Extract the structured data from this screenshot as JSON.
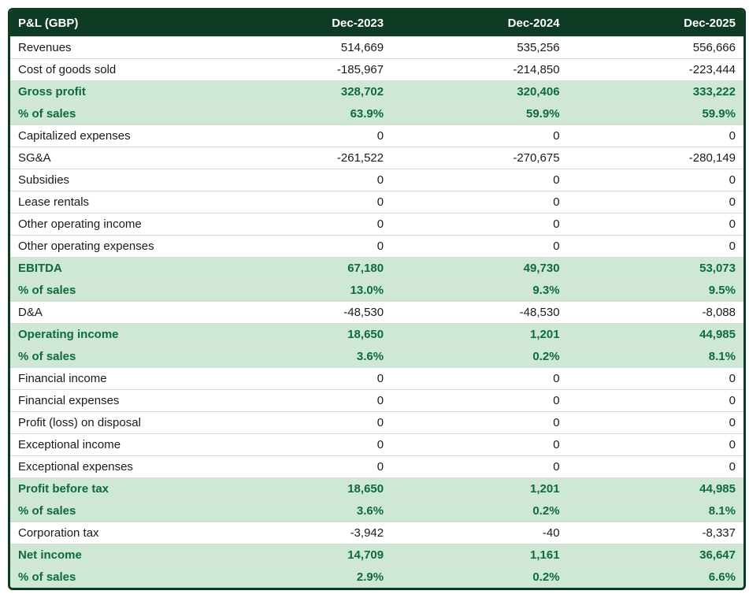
{
  "colors": {
    "header_bg": "#0d3b24",
    "header_text": "#ffffff",
    "row_border": "#d9d9d9",
    "highlight_bg": "#cfe8d6",
    "highlight_text": "#0d6b3d",
    "body_text": "#1a1a1a",
    "background": "#ffffff"
  },
  "fonts": {
    "family": "Arial, Helvetica, sans-serif",
    "header_size_pt": 11,
    "body_size_pt": 11
  },
  "table": {
    "columns": [
      "P&L (GBP)",
      "Dec-2023",
      "Dec-2024",
      "Dec-2025"
    ],
    "col_widths_pct": [
      28,
      24,
      24,
      24
    ],
    "rows": [
      {
        "label": "Revenues",
        "vals": [
          "514,669",
          "535,256",
          "556,666"
        ],
        "highlight": false
      },
      {
        "label": "Cost of goods sold",
        "vals": [
          "-185,967",
          "-214,850",
          "-223,444"
        ],
        "highlight": false
      },
      {
        "label": "Gross profit",
        "vals": [
          "328,702",
          "320,406",
          "333,222"
        ],
        "highlight": true
      },
      {
        "label": "% of sales",
        "vals": [
          "63.9%",
          "59.9%",
          "59.9%"
        ],
        "highlight": true
      },
      {
        "label": "Capitalized expenses",
        "vals": [
          "0",
          "0",
          "0"
        ],
        "highlight": false
      },
      {
        "label": "SG&A",
        "vals": [
          "-261,522",
          "-270,675",
          "-280,149"
        ],
        "highlight": false
      },
      {
        "label": "Subsidies",
        "vals": [
          "0",
          "0",
          "0"
        ],
        "highlight": false
      },
      {
        "label": "Lease rentals",
        "vals": [
          "0",
          "0",
          "0"
        ],
        "highlight": false
      },
      {
        "label": "Other operating income",
        "vals": [
          "0",
          "0",
          "0"
        ],
        "highlight": false
      },
      {
        "label": "Other operating expenses",
        "vals": [
          "0",
          "0",
          "0"
        ],
        "highlight": false
      },
      {
        "label": "EBITDA",
        "vals": [
          "67,180",
          "49,730",
          "53,073"
        ],
        "highlight": true
      },
      {
        "label": "% of sales",
        "vals": [
          "13.0%",
          "9.3%",
          "9.5%"
        ],
        "highlight": true
      },
      {
        "label": "D&A",
        "vals": [
          "-48,530",
          "-48,530",
          "-8,088"
        ],
        "highlight": false
      },
      {
        "label": "Operating income",
        "vals": [
          "18,650",
          "1,201",
          "44,985"
        ],
        "highlight": true
      },
      {
        "label": "% of sales",
        "vals": [
          "3.6%",
          "0.2%",
          "8.1%"
        ],
        "highlight": true
      },
      {
        "label": "Financial income",
        "vals": [
          "0",
          "0",
          "0"
        ],
        "highlight": false
      },
      {
        "label": "Financial expenses",
        "vals": [
          "0",
          "0",
          "0"
        ],
        "highlight": false
      },
      {
        "label": "Profit (loss) on disposal",
        "vals": [
          "0",
          "0",
          "0"
        ],
        "highlight": false
      },
      {
        "label": "Exceptional income",
        "vals": [
          "0",
          "0",
          "0"
        ],
        "highlight": false
      },
      {
        "label": "Exceptional expenses",
        "vals": [
          "0",
          "0",
          "0"
        ],
        "highlight": false
      },
      {
        "label": "Profit before tax",
        "vals": [
          "18,650",
          "1,201",
          "44,985"
        ],
        "highlight": true
      },
      {
        "label": "% of sales",
        "vals": [
          "3.6%",
          "0.2%",
          "8.1%"
        ],
        "highlight": true
      },
      {
        "label": "Corporation tax",
        "vals": [
          "-3,942",
          "-40",
          "-8,337"
        ],
        "highlight": false
      },
      {
        "label": "Net income",
        "vals": [
          "14,709",
          "1,161",
          "36,647"
        ],
        "highlight": true
      },
      {
        "label": "% of sales",
        "vals": [
          "2.9%",
          "0.2%",
          "6.6%"
        ],
        "highlight": true
      }
    ]
  }
}
